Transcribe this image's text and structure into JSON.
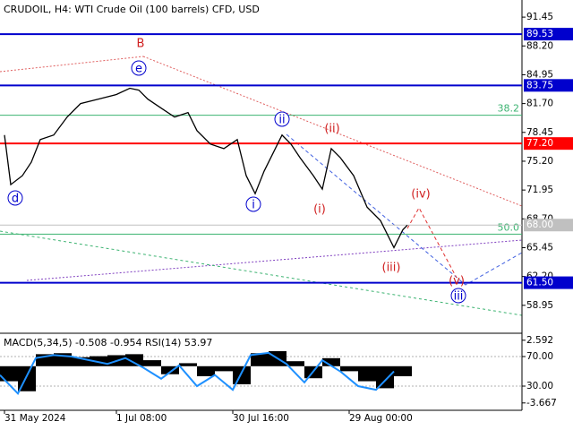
{
  "chart_data": [
    {
      "type": "line",
      "title": "CRUDOIL, H4:  WTI Crude Oil (100 barrels) CFD, USD",
      "x": [
        1,
        2.4,
        5,
        7,
        9,
        12,
        15,
        18,
        22,
        26,
        29,
        31,
        33,
        36,
        39,
        42,
        44,
        47,
        50,
        53,
        55,
        57,
        59,
        61,
        63,
        65,
        67,
        70,
        72,
        74,
        76,
        79,
        82,
        85,
        88,
        90,
        91
      ],
      "values": [
        78.15,
        72.56,
        73.57,
        75.1,
        77.64,
        78.15,
        80.18,
        81.7,
        82.21,
        82.72,
        83.43,
        83.22,
        82.21,
        81.19,
        80.18,
        80.69,
        78.65,
        77.13,
        76.62,
        77.64,
        73.57,
        71.54,
        74.08,
        76.11,
        78.15,
        77.13,
        75.61,
        73.57,
        72.05,
        76.62,
        75.61,
        73.57,
        70.02,
        68.5,
        65.45,
        67.48,
        67.99
      ],
      "color": "#000000",
      "xlim": [
        0,
        116.6
      ],
      "ylim": [
        55.8,
        93.38
      ],
      "xticks": [
        {
          "value": 1,
          "label": "31 May 2024"
        },
        {
          "value": 26,
          "label": "1 Jul 08:00"
        },
        {
          "value": 52,
          "label": "30 Jul 16:00"
        },
        {
          "value": 78,
          "label": "29 Aug 00:00"
        }
      ],
      "yticks": [
        91.45,
        {
          "value": 88.2,
          "label": "88.20"
        },
        84.95,
        {
          "value": 81.7,
          "label": "81.70"
        },
        78.45,
        {
          "value": 75.2,
          "label": "75.20"
        },
        71.95,
        {
          "value": 68.7,
          "label": "68.70"
        },
        65.45,
        {
          "value": 62.2,
          "label": "62.20"
        },
        58.95
      ],
      "levels": [
        {
          "value": 89.53,
          "color": "#0000cd"
        },
        {
          "value": 83.75,
          "color": "#0000cd"
        },
        {
          "value": 77.2,
          "label": "77.20",
          "color": "#ff0000"
        },
        {
          "value": 68,
          "label": "68.00",
          "color": "#c0c0c0"
        },
        {
          "value": 61.5,
          "label": "61.50",
          "color": "#0000cd"
        }
      ],
      "fib_levels": [
        {
          "ratio": "38.2",
          "price": 80.38
        },
        {
          "ratio": "50.0",
          "price": 66.97
        }
      ],
      "fib_color": "#3cb371",
      "wave_labels": [
        "B",
        "e",
        "ii",
        "(ii)",
        "d",
        "i",
        "(i)",
        "(iii)",
        "(iv)",
        "(v)",
        "iii"
      ]
    },
    {
      "type": "bar",
      "title": "MACD(5,34,5) -0.508 -0.954 RSI(14) 53.97",
      "x": [
        0,
        4,
        8,
        12,
        16,
        20,
        24,
        28,
        32,
        36,
        40,
        44,
        48,
        52,
        56,
        60,
        64,
        68,
        72,
        76,
        80,
        84,
        88
      ],
      "series": [
        {
          "color": "#000000",
          "values": [
            -1.5,
            -2.5,
            1.2,
            1.3,
            0.9,
            1.0,
            1.1,
            1.2,
            0.6,
            -0.8,
            0.3,
            -1.0,
            -0.5,
            -1.8,
            1.3,
            1.5,
            0.5,
            -1.2,
            0.8,
            -0.5,
            -1.5,
            -2.2,
            -1.0
          ]
        },
        {
          "color": "#1e90ff",
          "axis": "y2",
          "values": [
            45,
            20,
            68,
            72,
            70,
            65,
            60,
            68,
            55,
            40,
            58,
            30,
            45,
            25,
            72,
            75,
            60,
            35,
            65,
            50,
            30,
            25,
            50
          ]
        }
      ],
      "xlim": [
        0,
        116.6
      ],
      "ylim": [
        -4.4,
        3.2
      ],
      "yticks": [
        2.592,
        -3.667
      ],
      "y2lim": [
        -2.7,
        100.3
      ],
      "y2ticks": [
        {
          "value": 70,
          "label": "70.00"
        },
        {
          "value": 30,
          "label": "30.00"
        }
      ]
    }
  ]
}
